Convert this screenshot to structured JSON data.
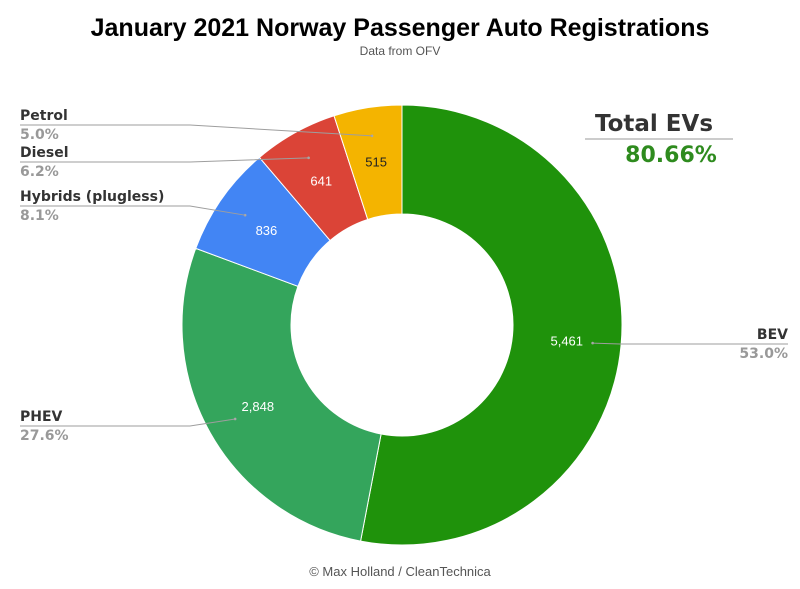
{
  "chart_data": {
    "type": "pie",
    "variant": "donut",
    "title": "January 2021 Norway Passenger Auto Registrations",
    "subtitle": "Data from OFV",
    "credit": "© Max Holland / CleanTechnica",
    "slices": [
      {
        "name": "BEV",
        "value": 5461,
        "value_label": "5,461",
        "percent_label": "53.0%",
        "color": "#1f920b",
        "value_text_color": "#ffffff"
      },
      {
        "name": "PHEV",
        "value": 2848,
        "value_label": "2,848",
        "percent_label": "27.6%",
        "color": "#34a55c",
        "value_text_color": "#ffffff"
      },
      {
        "name": "Hybrids (plugless)",
        "value": 836,
        "value_label": "836",
        "percent_label": "8.1%",
        "color": "#4285f4",
        "value_text_color": "#ffffff"
      },
      {
        "name": "Diesel",
        "value": 641,
        "value_label": "641",
        "percent_label": "6.2%",
        "color": "#db4437",
        "value_text_color": "#ffffff"
      },
      {
        "name": "Petrol",
        "value": 515,
        "value_label": "515",
        "percent_label": "5.0%",
        "color": "#f4b400",
        "value_text_color": "#222222"
      }
    ],
    "annotation": {
      "label": "Total EVs",
      "value": "80.66%",
      "value_color": "#2e8b1e"
    }
  }
}
